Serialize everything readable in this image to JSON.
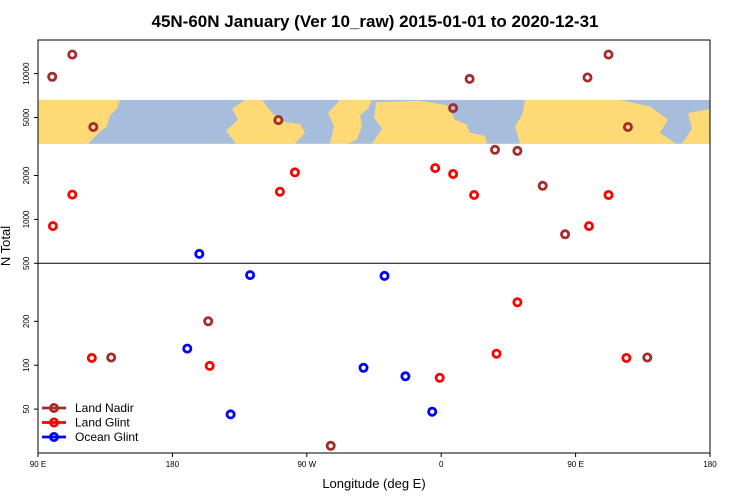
{
  "chart_data": {
    "type": "scatter",
    "title": "45N-60N January (Ver 10_raw)   2015-01-01 to 2020-12-31",
    "xlabel": "Longitude (deg E)",
    "ylabel": "N Total",
    "y_scale": "log",
    "xlim": [
      90,
      540
    ],
    "ylim": [
      25,
      17000
    ],
    "x_ticks": [
      {
        "value": 90,
        "label": "90 E"
      },
      {
        "value": 180,
        "label": "180"
      },
      {
        "value": 270,
        "label": "90 W"
      },
      {
        "value": 360,
        "label": "0"
      },
      {
        "value": 450,
        "label": "90 E"
      },
      {
        "value": 540,
        "label": "180"
      }
    ],
    "y_ticks": [
      {
        "value": 50,
        "label": "50"
      },
      {
        "value": 100,
        "label": "100"
      },
      {
        "value": 200,
        "label": "200"
      },
      {
        "value": 500,
        "label": "500"
      },
      {
        "value": 1000,
        "label": "1000"
      },
      {
        "value": 2000,
        "label": "2000"
      },
      {
        "value": 5000,
        "label": "5000"
      },
      {
        "value": 10000,
        "label": "10000"
      }
    ],
    "reference_line_y": 500,
    "map_band": {
      "y_range": [
        3300,
        6600
      ],
      "ocean_color": "#a6bddb",
      "land_color": "#fed976"
    },
    "legend_position": "bottom-left",
    "series": [
      {
        "name": "Land Nadir",
        "color": "#a52a2a",
        "points": [
          {
            "x": 99.5,
            "y": 9500
          },
          {
            "x": 113,
            "y": 13500
          },
          {
            "x": 127,
            "y": 4300
          },
          {
            "x": 139,
            "y": 113
          },
          {
            "x": 204,
            "y": 200
          },
          {
            "x": 251,
            "y": 4800
          },
          {
            "x": 286,
            "y": 28
          },
          {
            "x": 368,
            "y": 5800
          },
          {
            "x": 379,
            "y": 9200
          },
          {
            "x": 396,
            "y": 3000
          },
          {
            "x": 411,
            "y": 2950
          },
          {
            "x": 428,
            "y": 1700
          },
          {
            "x": 443,
            "y": 790
          },
          {
            "x": 458,
            "y": 9400
          },
          {
            "x": 472,
            "y": 13500
          },
          {
            "x": 485,
            "y": 4300
          },
          {
            "x": 498,
            "y": 113
          }
        ]
      },
      {
        "name": "Land Glint",
        "color": "#ff0000",
        "points": [
          {
            "x": 100,
            "y": 900
          },
          {
            "x": 113,
            "y": 1480
          },
          {
            "x": 126,
            "y": 112
          },
          {
            "x": 205,
            "y": 99
          },
          {
            "x": 252,
            "y": 1550
          },
          {
            "x": 262,
            "y": 2100
          },
          {
            "x": 356,
            "y": 2250
          },
          {
            "x": 359,
            "y": 82
          },
          {
            "x": 368,
            "y": 2050
          },
          {
            "x": 382,
            "y": 1470
          },
          {
            "x": 397,
            "y": 120
          },
          {
            "x": 411,
            "y": 270
          },
          {
            "x": 459,
            "y": 900
          },
          {
            "x": 472,
            "y": 1470
          },
          {
            "x": 484,
            "y": 112
          }
        ]
      },
      {
        "name": "Ocean Glint",
        "color": "#0000ff",
        "points": [
          {
            "x": 190,
            "y": 130
          },
          {
            "x": 198,
            "y": 580
          },
          {
            "x": 219,
            "y": 46
          },
          {
            "x": 232,
            "y": 415
          },
          {
            "x": 308,
            "y": 96
          },
          {
            "x": 322,
            "y": 410
          },
          {
            "x": 336,
            "y": 84
          },
          {
            "x": 354,
            "y": 48
          }
        ]
      }
    ]
  }
}
